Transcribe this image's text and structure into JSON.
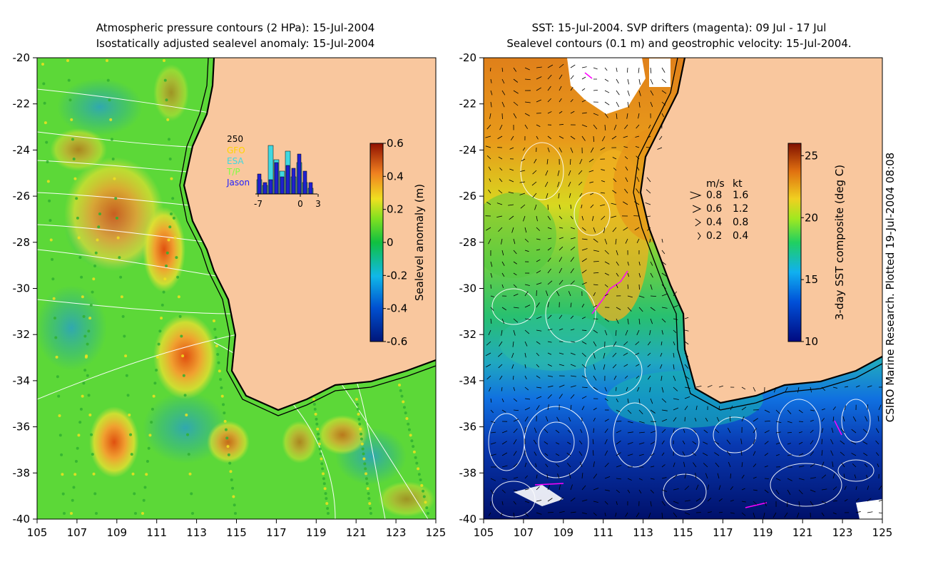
{
  "left_panel": {
    "title_line1": "Atmospheric pressure contours (2 HPa): 15-Jul-2004",
    "title_line2": "Isostatically adjusted sealevel anomaly: 15-Jul-2004",
    "y_ticks": [
      "-20",
      "-22",
      "-24",
      "-26",
      "-28",
      "-30",
      "-32",
      "-34",
      "-36",
      "-38",
      "-40"
    ],
    "x_ticks": [
      "105",
      "107",
      "109",
      "111",
      "113",
      "115",
      "117",
      "119",
      "121",
      "123",
      "125"
    ],
    "colorbar": {
      "label": "Sealevel anomaly (m)",
      "ticks": [
        "0.6",
        "0.4",
        "0.2",
        "0",
        "-0.2",
        "-0.4",
        "-0.6"
      ],
      "min": -0.6,
      "max": 0.6
    },
    "histogram": {
      "ymax_label": "250",
      "legend": [
        "GFO",
        "ESA",
        "T/P",
        "Jason"
      ],
      "legend_colors": [
        "#ffd400",
        "#40d8e0",
        "#7fff40",
        "#2020ff"
      ],
      "x_ticks": [
        "-7",
        "0",
        "3"
      ],
      "bars_dark": [
        0.35,
        0.2,
        0.25,
        0.55,
        0.3,
        0.5,
        0.45,
        0.7,
        0.4,
        0.2
      ],
      "bars_light": [
        0.25,
        0.15,
        0.85,
        0.6,
        0.4,
        0.75,
        0.3,
        0.55,
        0.2,
        0.1
      ]
    },
    "colors": {
      "land": "#f9c79e",
      "contour": "#ffffff",
      "coast": "#000000"
    }
  },
  "right_panel": {
    "title_line1": "SST: 15-Jul-2004. SVP drifters (magenta): 09 Jul - 17 Jul",
    "title_line2": "Sealevel contours (0.1 m) and geostrophic velocity: 15-Jul-2004.",
    "y_ticks": [
      "-20",
      "-22",
      "-24",
      "-26",
      "-28",
      "-30",
      "-32",
      "-34",
      "-36",
      "-38",
      "-40"
    ],
    "x_ticks": [
      "105",
      "107",
      "109",
      "111",
      "113",
      "115",
      "117",
      "119",
      "121",
      "123",
      "125"
    ],
    "colorbar": {
      "label": "3-day SST composite (deg C)",
      "ticks": [
        "25",
        "20",
        "15",
        "10"
      ],
      "min": 10,
      "max": 26
    },
    "velocity_legend": {
      "header_ms": "m/s",
      "header_kt": "kt",
      "rows": [
        {
          "ms": "0.8",
          "kt": "1.6",
          "scale": 0.8
        },
        {
          "ms": "0.6",
          "kt": "1.2",
          "scale": 0.6
        },
        {
          "ms": "0.4",
          "kt": "0.8",
          "scale": 0.4
        },
        {
          "ms": "0.2",
          "kt": "0.4",
          "scale": 0.2
        }
      ]
    },
    "colors": {
      "land": "#f9c79e",
      "drifter": "#ff00ff"
    }
  },
  "credit": "CSIRO Marine Research. Plotted 19-Jul-2004 08:08"
}
